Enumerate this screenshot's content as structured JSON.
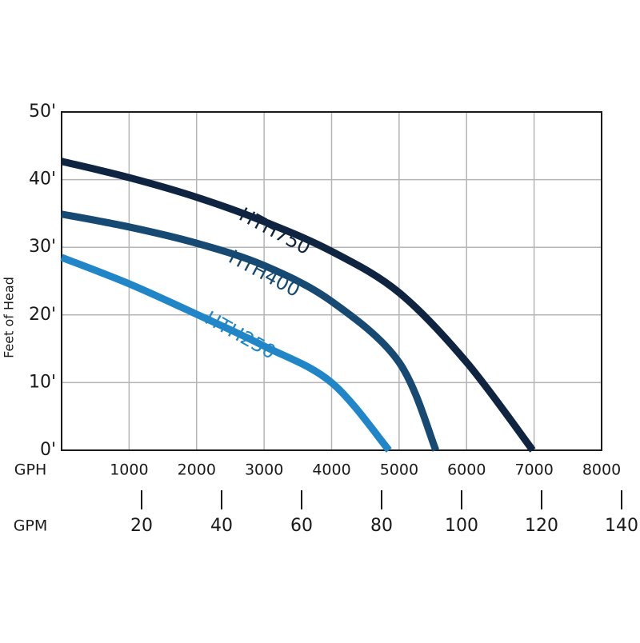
{
  "chart_data": {
    "type": "line",
    "y_axis_label": "Feet of Head",
    "x_axis_label": "GPH",
    "x2_axis_label": "GPM",
    "xlim": [
      0,
      8000
    ],
    "xticks": [
      1000,
      2000,
      3000,
      4000,
      5000,
      6000,
      7000,
      8000
    ],
    "x2lim": [
      0,
      135
    ],
    "x2ticks": [
      20,
      40,
      60,
      80,
      100,
      120,
      140
    ],
    "ylim": [
      0,
      50
    ],
    "yticks": [
      {
        "value": 0,
        "label": "0'"
      },
      {
        "value": 10,
        "label": "10'"
      },
      {
        "value": 20,
        "label": "20'"
      },
      {
        "value": 30,
        "label": "30'"
      },
      {
        "value": 40,
        "label": "40'"
      },
      {
        "value": 50,
        "label": "50'"
      }
    ],
    "grid": true,
    "series": [
      {
        "name": "HTH750",
        "color": "#0e2440",
        "x": [
          0,
          1000,
          2000,
          3000,
          4000,
          5000,
          6000,
          6980
        ],
        "values": [
          42.7,
          40.3,
          37.4,
          33.8,
          29.4,
          23.3,
          13.0,
          0
        ]
      },
      {
        "name": "HTH400",
        "color": "#164a72",
        "x": [
          0,
          1000,
          2000,
          3000,
          4000,
          5000,
          5545
        ],
        "values": [
          34.9,
          33.0,
          30.6,
          27.3,
          22.0,
          13.0,
          0
        ]
      },
      {
        "name": "HTH250",
        "color": "#2086c8",
        "x": [
          0,
          1000,
          2000,
          3000,
          4000,
          4850
        ],
        "values": [
          28.5,
          24.6,
          20.1,
          15.4,
          10.0,
          0
        ]
      }
    ]
  }
}
